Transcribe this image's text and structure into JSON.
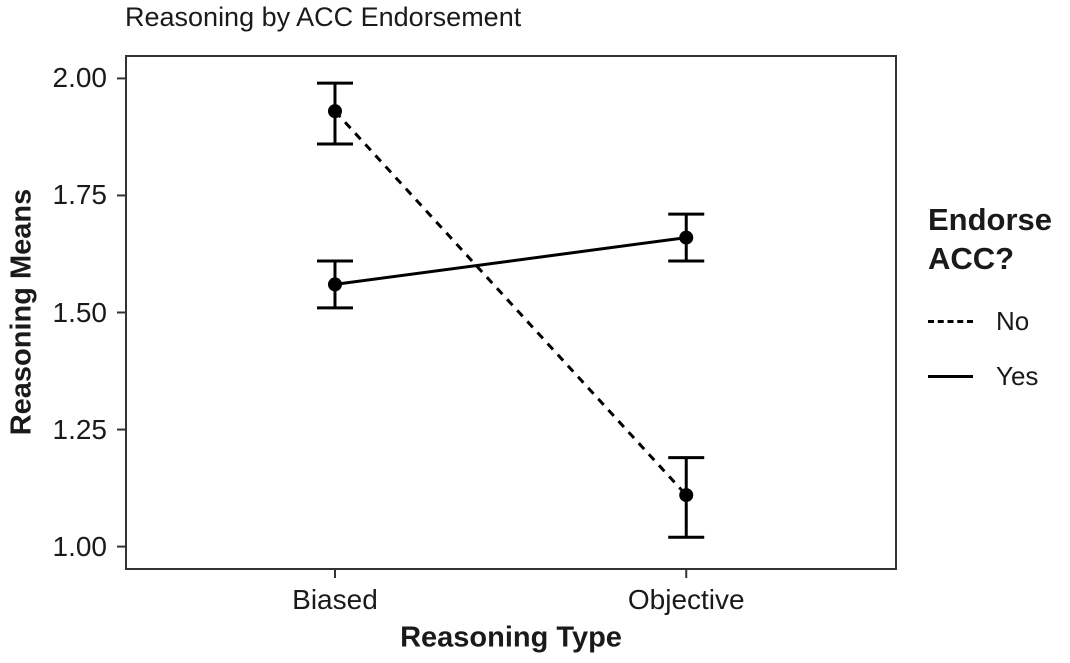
{
  "page": {
    "background": "#ffffff"
  },
  "chart_data": {
    "type": "line",
    "title": "Reasoning by ACC Endorsement",
    "xlabel": "Reasoning Type",
    "ylabel": "Reasoning Means",
    "categories": [
      "Biased",
      "Objective"
    ],
    "y_tick_labels": [
      "2.00",
      "1.75",
      "1.50",
      "1.25",
      "1.00"
    ],
    "ylim": [
      0.95,
      2.05
    ],
    "grid": false,
    "error_bars": true,
    "legend": {
      "title": "Endorse ACC?",
      "position": "right",
      "entries": [
        {
          "label": "No",
          "linestyle": "dashed"
        },
        {
          "label": "Yes",
          "linestyle": "solid"
        }
      ]
    },
    "series": [
      {
        "name": "No",
        "linestyle": "dashed",
        "marker": "circle",
        "values": [
          1.93,
          1.11
        ],
        "ci_lower": [
          1.86,
          1.02
        ],
        "ci_upper": [
          1.99,
          1.19
        ]
      },
      {
        "name": "Yes",
        "linestyle": "solid",
        "marker": "circle",
        "values": [
          1.56,
          1.66
        ],
        "ci_lower": [
          1.51,
          1.61
        ],
        "ci_upper": [
          1.61,
          1.71
        ]
      }
    ],
    "colors": {
      "line": "#000000",
      "point": "#000000",
      "panel_border": "#333333",
      "tick": "#333333",
      "text": "#1a1a1a",
      "background": "#ffffff"
    }
  }
}
